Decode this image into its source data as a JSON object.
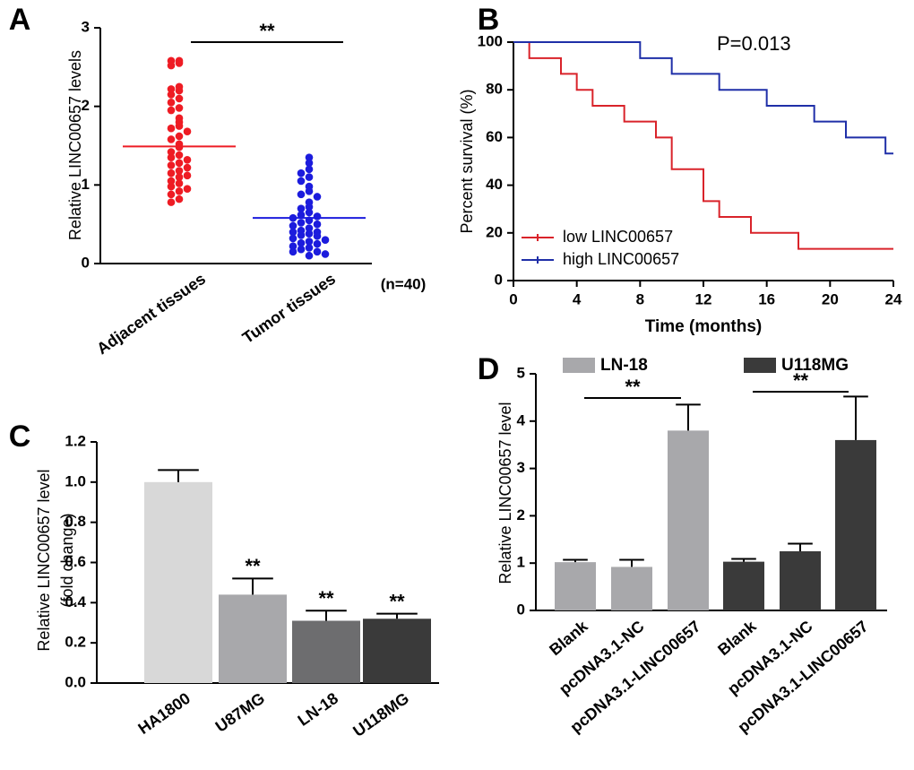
{
  "chart_data": [
    {
      "panel": "A",
      "type": "scatter",
      "ylabel": "Relative LINC00657 levels",
      "categories": [
        "Adjacent tissues",
        "Tumor tissues"
      ],
      "colors": [
        "#ee1c24",
        "#1c1cdd"
      ],
      "values": [
        [
          2.58,
          2.58,
          2.55,
          2.52,
          2.25,
          2.22,
          2.2,
          2.15,
          2.1,
          2.05,
          1.98,
          1.95,
          1.85,
          1.8,
          1.75,
          1.72,
          1.68,
          1.62,
          1.58,
          1.52,
          1.48,
          1.42,
          1.38,
          1.35,
          1.32,
          1.28,
          1.25,
          1.22,
          1.18,
          1.15,
          1.12,
          1.1,
          1.05,
          1.02,
          0.98,
          0.95,
          0.92,
          0.88,
          0.82,
          0.78
        ],
        [
          1.35,
          1.28,
          1.2,
          1.15,
          1.1,
          1.05,
          0.98,
          0.92,
          0.88,
          0.85,
          0.78,
          0.72,
          0.7,
          0.65,
          0.62,
          0.6,
          0.58,
          0.55,
          0.52,
          0.5,
          0.48,
          0.45,
          0.42,
          0.4,
          0.4,
          0.38,
          0.36,
          0.35,
          0.32,
          0.3,
          0.28,
          0.26,
          0.25,
          0.22,
          0.2,
          0.18,
          0.15,
          0.15,
          0.12,
          0.1
        ]
      ],
      "means": [
        1.49,
        0.58
      ],
      "significance": "**",
      "note": "(n=40)",
      "ylim": [
        0,
        3
      ],
      "yticks": [
        0,
        1,
        2,
        3
      ]
    },
    {
      "panel": "B",
      "type": "line",
      "ylabel": "Percent survival (%)",
      "xlabel": "Time (months)",
      "annotation": "P=0.013",
      "legend": "lower left",
      "series": [
        {
          "name": "low LINC00657",
          "color": "#d9232a",
          "x": [
            0,
            1,
            3,
            4,
            5,
            7,
            9,
            10,
            12,
            13,
            15,
            18,
            24
          ],
          "values": [
            100,
            93.3,
            86.7,
            80,
            73.3,
            66.7,
            60,
            46.7,
            33.3,
            26.7,
            20,
            13.3,
            13.3
          ]
        },
        {
          "name": "high LINC00657",
          "color": "#1f2fa8",
          "x": [
            0,
            8,
            10,
            13,
            16,
            19,
            21,
            23.5,
            24
          ],
          "values": [
            100,
            93.3,
            86.7,
            80,
            73.3,
            66.7,
            60,
            53.3,
            53.3
          ]
        }
      ],
      "xlim": [
        0,
        24
      ],
      "xticks": [
        0,
        4,
        8,
        12,
        16,
        20,
        24
      ],
      "ylim": [
        0,
        100
      ],
      "yticks": [
        0,
        20,
        40,
        60,
        80,
        100
      ]
    },
    {
      "panel": "C",
      "type": "bar",
      "ylabel": "Relative LINC00657 level",
      "ylabel2": "(fold change)",
      "categories": [
        "HA1800",
        "U87MG",
        "LN-18",
        "U118MG"
      ],
      "values": [
        1.0,
        0.44,
        0.31,
        0.32
      ],
      "errors": [
        0.06,
        0.08,
        0.05,
        0.025
      ],
      "colors": [
        "#d8d8d8",
        "#a8a8ab",
        "#6d6d6f",
        "#3a3a3a"
      ],
      "significance": [
        null,
        "**",
        "**",
        "**"
      ],
      "ylim": [
        0,
        1.2
      ],
      "yticks": [
        {
          "value": 0,
          "label": "0.0"
        },
        0.2,
        0.4,
        0.6,
        0.8,
        {
          "value": 1,
          "label": "1.0"
        },
        1.2
      ]
    },
    {
      "panel": "D",
      "type": "bar",
      "ylabel": "Relative LINC00657 level",
      "legend": "top",
      "categories": [
        "Blank",
        "pcDNA3.1-NC",
        "pcDNA3.1-LINC00657"
      ],
      "series": [
        {
          "name": "LN-18",
          "color": "#a8a8ab",
          "values": [
            1.02,
            0.92,
            3.8
          ],
          "errors": [
            0.05,
            0.15,
            0.55
          ],
          "significance": "**"
        },
        {
          "name": "U118MG",
          "color": "#3a3a3a",
          "values": [
            1.03,
            1.25,
            3.6
          ],
          "errors": [
            0.06,
            0.16,
            0.92
          ],
          "significance": "**"
        }
      ],
      "ylim": [
        0,
        5
      ],
      "yticks": [
        0,
        1,
        2,
        3,
        4,
        5
      ]
    }
  ]
}
